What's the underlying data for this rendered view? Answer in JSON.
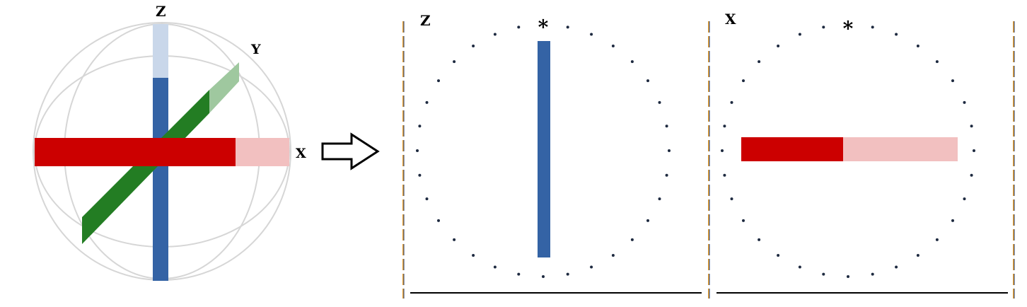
{
  "sphere_panel": {
    "labels": {
      "z": "Z",
      "y": "Y",
      "x": "X"
    },
    "colors": {
      "z_solid": "#3463A5",
      "z_faded": "#C9D7EA",
      "x_solid": "#CC0000",
      "x_faded": "#F2C0C0",
      "y_solid": "#237D23",
      "y_faded": "#9FC89F",
      "wire": "#D6D6D6"
    }
  },
  "arrow": {
    "icon": "right-arrow-icon"
  },
  "panel_z": {
    "axis_label": "Z",
    "marker": "*",
    "bar_color": "#3463A5",
    "dot_color": "#1E2A40"
  },
  "panel_x": {
    "axis_label": "X",
    "marker": "*",
    "bar_solid": "#CC0000",
    "bar_faded": "#F2C0C0",
    "dot_color": "#1E2A40"
  },
  "frame": {
    "line_color": "#000000",
    "dash_a": "#E8A030",
    "dash_b": "#1E3C78"
  }
}
